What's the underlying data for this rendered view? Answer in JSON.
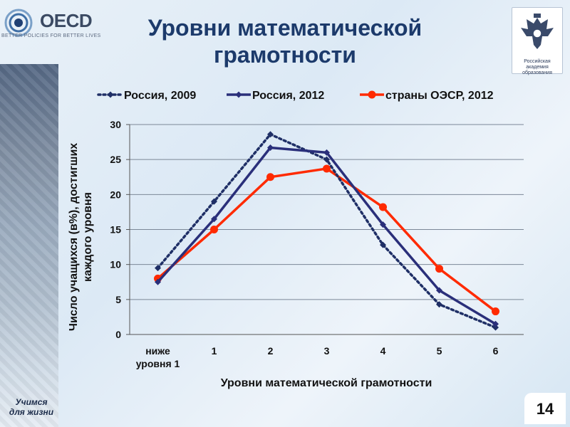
{
  "branding": {
    "oecd_name": "OECD",
    "oecd_tagline": "BETTER POLICIES FOR BETTER LIVES",
    "rao_text_line1": "Российская академия",
    "rao_text_line2": "образования",
    "slogan_line1": "Учимся",
    "slogan_line2": "для жизни"
  },
  "slide": {
    "title_line1": "Уровни математической",
    "title_line2": "грамотности",
    "page_number": "14"
  },
  "colors": {
    "russia_2009": "#1f2f66",
    "russia_2012": "#2a2f7a",
    "oecd_2012": "#ff2a00",
    "title": "#1c3a6b"
  },
  "chart_data": {
    "type": "line",
    "categories": [
      "ниже уровня 1",
      "1",
      "2",
      "3",
      "4",
      "5",
      "6"
    ],
    "category_lines": [
      [
        "ниже",
        "уровня 1"
      ],
      [
        "1"
      ],
      [
        "2"
      ],
      [
        "3"
      ],
      [
        "4"
      ],
      [
        "5"
      ],
      [
        "6"
      ]
    ],
    "series": [
      {
        "name": "Россия, 2009",
        "style": "dotted",
        "marker": "diamond",
        "values": [
          9.5,
          19.0,
          28.6,
          25.0,
          12.8,
          4.3,
          1.0
        ]
      },
      {
        "name": "Россия, 2012",
        "style": "solid",
        "marker": "diamond",
        "values": [
          7.5,
          16.5,
          26.7,
          26.0,
          15.7,
          6.3,
          1.5
        ]
      },
      {
        "name": "страны ОЭСР, 2012",
        "style": "solid",
        "marker": "circle",
        "values": [
          8.0,
          15.0,
          22.5,
          23.7,
          18.2,
          9.4,
          3.3
        ]
      }
    ],
    "ylim": [
      0,
      30
    ],
    "yticks": [
      "0",
      "5",
      "10",
      "15",
      "20",
      "25",
      "30"
    ],
    "xlabel": "Уровни математической грамотности",
    "ylabel_line1": "Число учащихся (в%), достигших",
    "ylabel_line2": "каждого уровня",
    "grid": true,
    "legend_position": "top"
  }
}
